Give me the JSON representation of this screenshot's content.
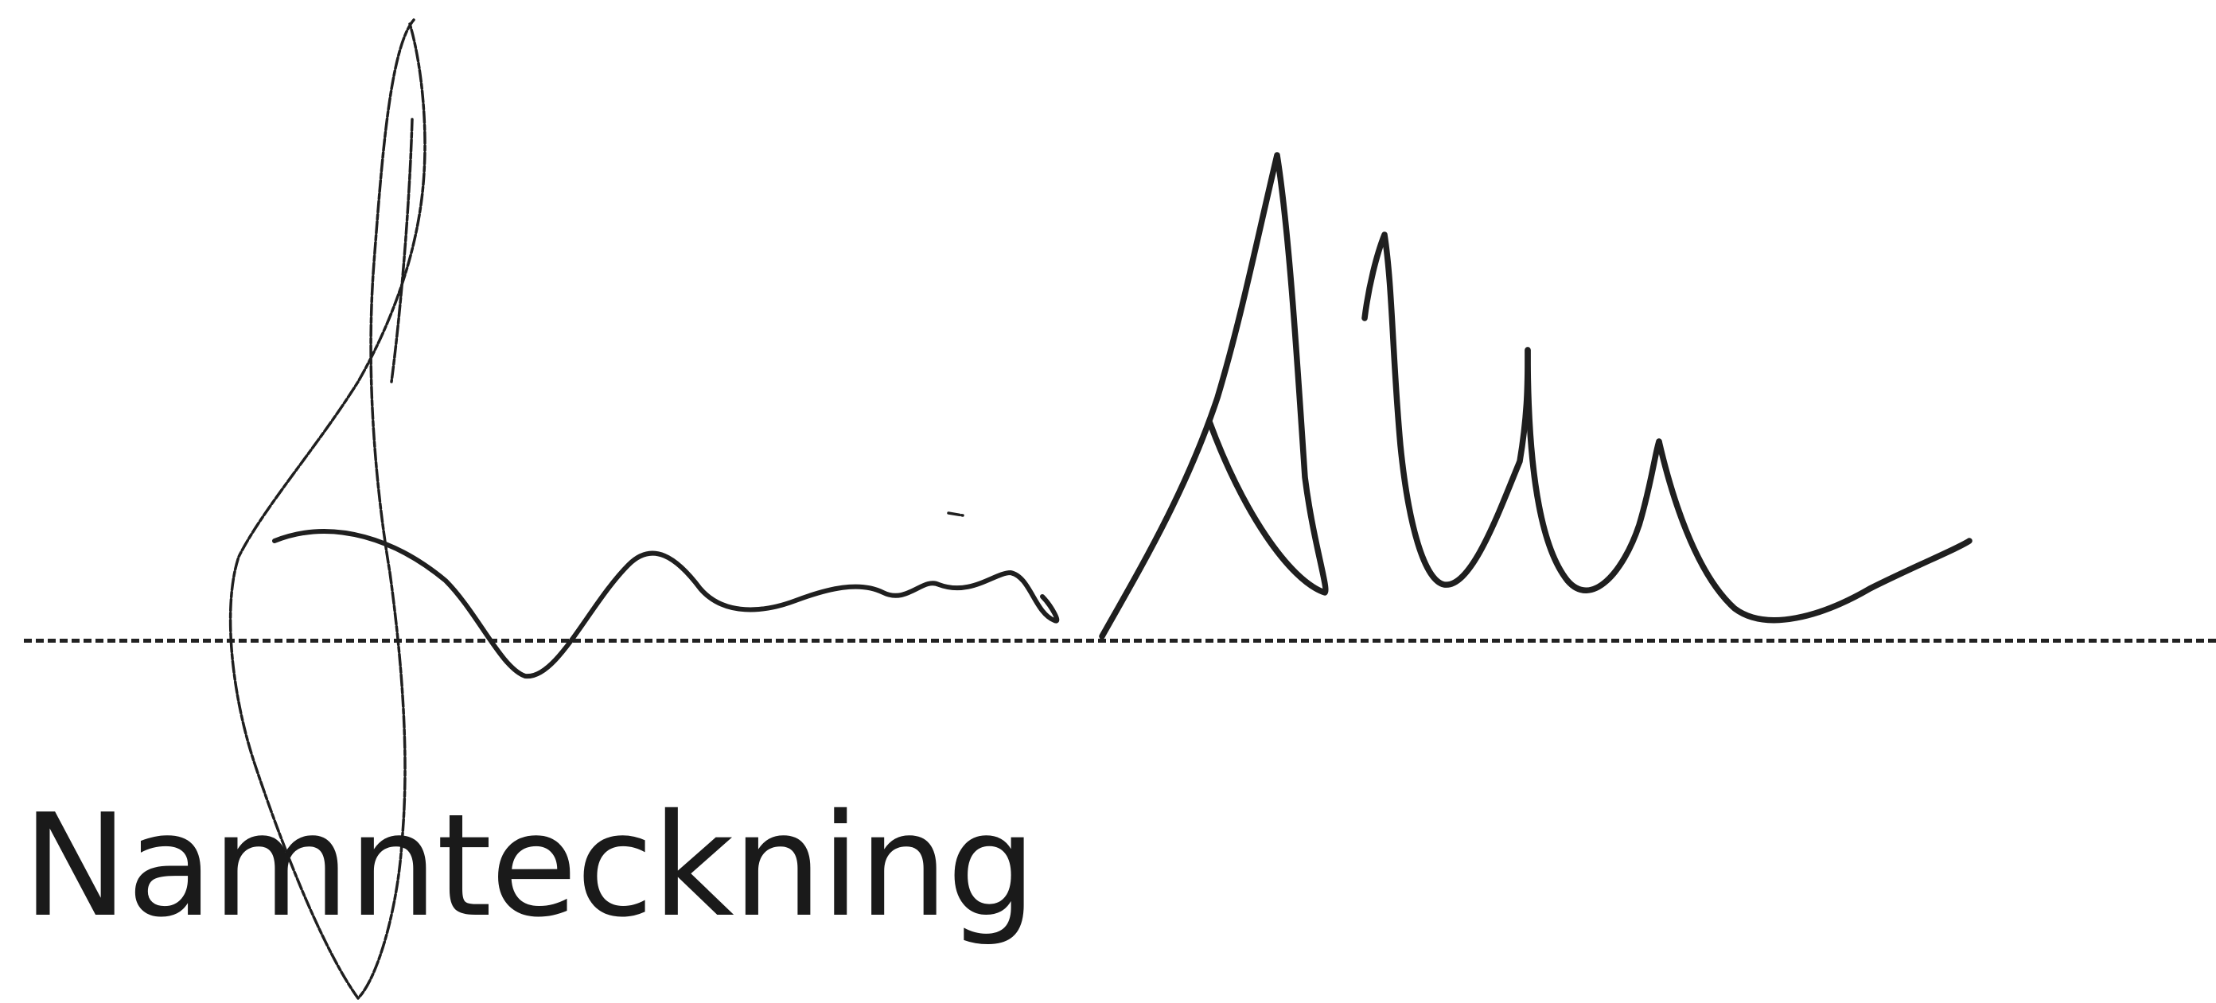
{
  "signature": {
    "label": "Namnteckning"
  }
}
